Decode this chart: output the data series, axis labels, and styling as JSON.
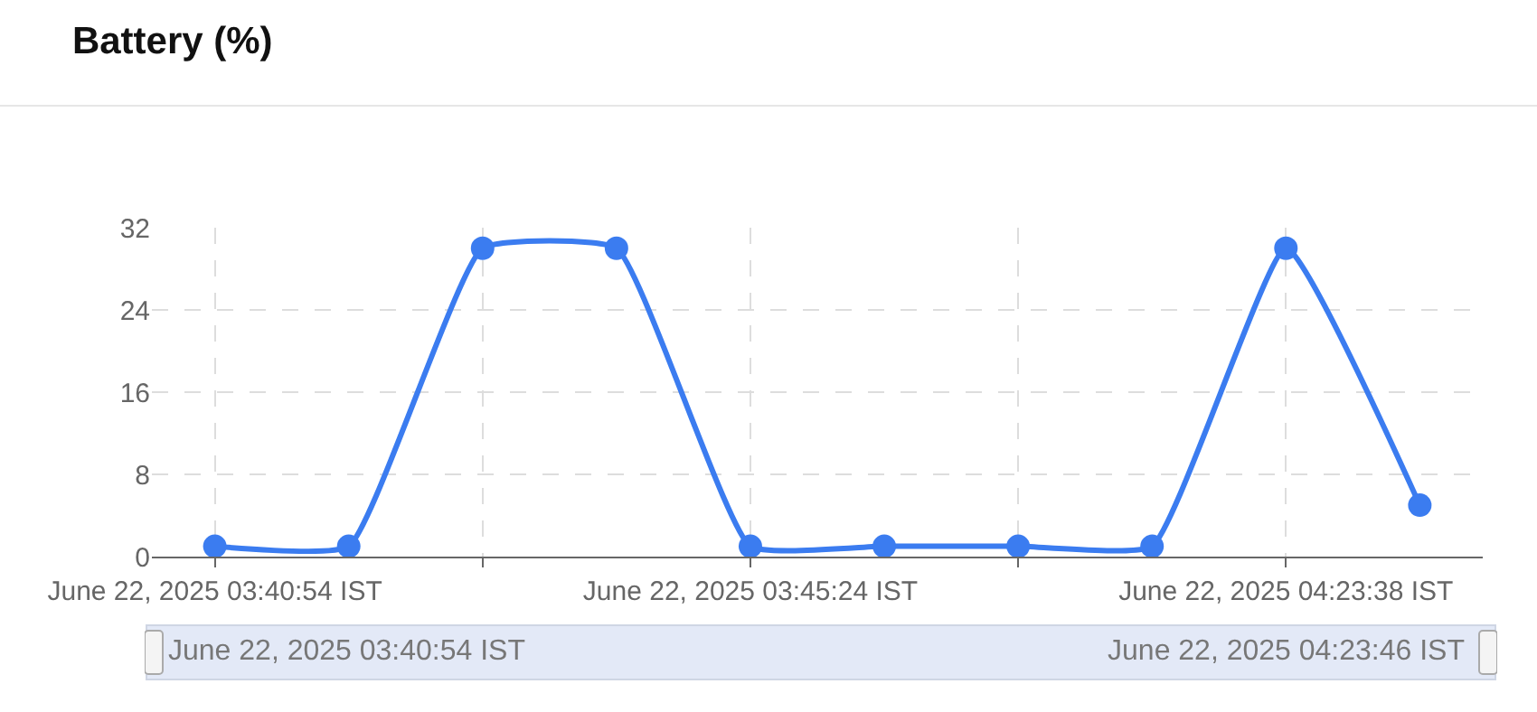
{
  "chart_data": {
    "type": "line",
    "title": "Battery (%)",
    "categories": [
      "June 22, 2025 03:40:54 IST",
      null,
      null,
      null,
      "June 22, 2025 03:45:24 IST",
      null,
      null,
      null,
      "June 22, 2025 04:23:38 IST",
      null
    ],
    "series": [
      {
        "color": "#3b7cf0",
        "values": [
          1,
          1,
          30,
          30,
          1,
          1,
          1,
          1,
          30,
          5
        ]
      }
    ],
    "ylim": [
      0,
      32
    ],
    "yticks": [
      0,
      8,
      16,
      24,
      32
    ],
    "grid": true,
    "marker": "circle",
    "line_style": "solid",
    "legend": false,
    "annotations": [
      "June 22, 2025 03:40:54 IST",
      "June 22, 2025 04:23:46 IST"
    ]
  }
}
